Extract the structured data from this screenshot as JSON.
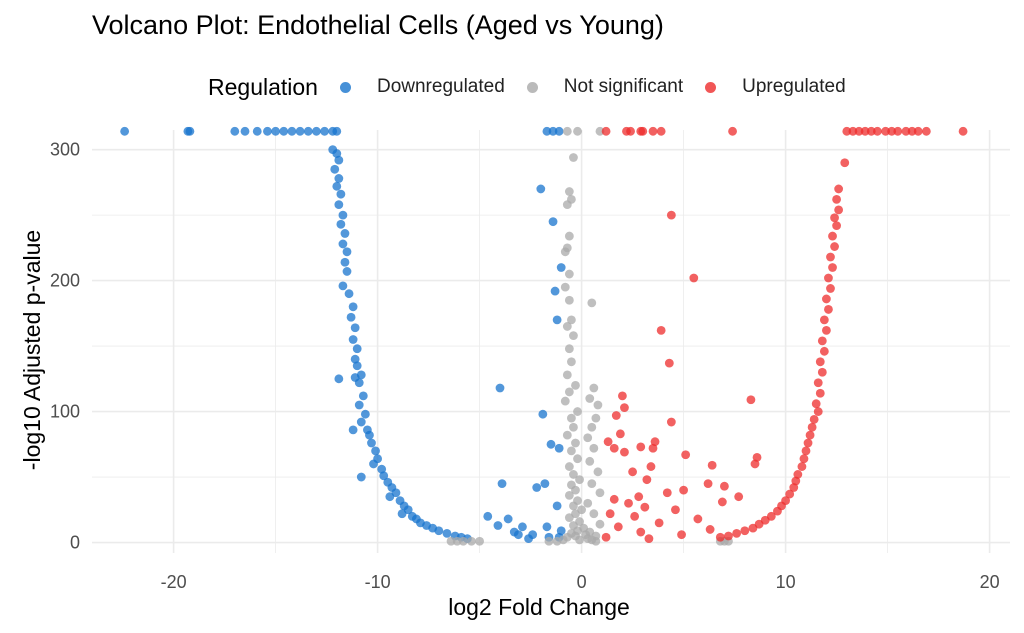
{
  "chart_data": {
    "type": "scatter",
    "title": "Volcano Plot: Endothelial Cells (Aged vs Young)",
    "xlabel": "log2 Fold Change",
    "ylabel": "-log10 Adjusted p-value",
    "xlim": [
      -24,
      21
    ],
    "ylim": [
      -8,
      315
    ],
    "x_ticks": [
      -20,
      -10,
      0,
      10,
      20
    ],
    "y_ticks": [
      0,
      100,
      200,
      300
    ],
    "grid": true,
    "legend": {
      "title": "Regulation",
      "position": "top"
    },
    "series": [
      {
        "name": "Downregulated",
        "color": "#1874cd",
        "points": [
          [
            -22.4,
            314
          ],
          [
            -19.3,
            314
          ],
          [
            -19.2,
            314
          ],
          [
            -17.0,
            314
          ],
          [
            -16.5,
            314
          ],
          [
            -15.9,
            314
          ],
          [
            -15.4,
            314
          ],
          [
            -15.0,
            314
          ],
          [
            -14.6,
            314
          ],
          [
            -14.2,
            314
          ],
          [
            -13.8,
            314
          ],
          [
            -13.4,
            314
          ],
          [
            -13.0,
            314
          ],
          [
            -12.6,
            314
          ],
          [
            -12.2,
            314
          ],
          [
            -12.0,
            314
          ],
          [
            -12.2,
            300
          ],
          [
            -12.0,
            297
          ],
          [
            -11.9,
            292
          ],
          [
            -12.1,
            285
          ],
          [
            -11.9,
            278
          ],
          [
            -12.0,
            272
          ],
          [
            -11.8,
            266
          ],
          [
            -11.9,
            258
          ],
          [
            -11.7,
            250
          ],
          [
            -11.8,
            243
          ],
          [
            -11.6,
            236
          ],
          [
            -11.7,
            228
          ],
          [
            -11.5,
            222
          ],
          [
            -11.6,
            214
          ],
          [
            -11.5,
            207
          ],
          [
            -11.7,
            196
          ],
          [
            -11.4,
            190
          ],
          [
            -11.2,
            180
          ],
          [
            -11.3,
            172
          ],
          [
            -11.1,
            164
          ],
          [
            -11.2,
            155
          ],
          [
            -11.0,
            148
          ],
          [
            -11.1,
            140
          ],
          [
            -11.0,
            135
          ],
          [
            -10.8,
            128
          ],
          [
            -11.1,
            126
          ],
          [
            -10.9,
            122
          ],
          [
            -11.9,
            125
          ],
          [
            -10.7,
            112
          ],
          [
            -10.9,
            105
          ],
          [
            -10.6,
            98
          ],
          [
            -10.8,
            92
          ],
          [
            -10.5,
            86
          ],
          [
            -10.4,
            82
          ],
          [
            -11.2,
            86
          ],
          [
            -10.3,
            76
          ],
          [
            -10.1,
            70
          ],
          [
            -10.0,
            64
          ],
          [
            -10.2,
            60
          ],
          [
            -9.8,
            56
          ],
          [
            -9.7,
            51
          ],
          [
            -10.8,
            50
          ],
          [
            -9.5,
            46
          ],
          [
            -9.3,
            42
          ],
          [
            -9.1,
            38
          ],
          [
            -9.4,
            35
          ],
          [
            -8.9,
            32
          ],
          [
            -8.7,
            28
          ],
          [
            -8.5,
            25
          ],
          [
            -8.8,
            22
          ],
          [
            -8.3,
            20
          ],
          [
            -8.1,
            18
          ],
          [
            -7.9,
            15
          ],
          [
            -7.6,
            13
          ],
          [
            -7.3,
            11
          ],
          [
            -7.0,
            9
          ],
          [
            -6.6,
            7
          ],
          [
            -6.2,
            5
          ],
          [
            -5.9,
            4
          ],
          [
            -5.6,
            3
          ],
          [
            -4.6,
            20
          ],
          [
            -4.1,
            13
          ],
          [
            -4.0,
            118
          ],
          [
            -3.9,
            45
          ],
          [
            -3.6,
            18
          ],
          [
            -3.3,
            8
          ],
          [
            -3.1,
            6
          ],
          [
            -2.9,
            12
          ],
          [
            -2.6,
            3
          ],
          [
            -2.4,
            6
          ],
          [
            -2.2,
            42
          ],
          [
            -2.0,
            270
          ],
          [
            -1.9,
            98
          ],
          [
            -1.8,
            45
          ],
          [
            -1.7,
            12
          ],
          [
            -1.6,
            4
          ],
          [
            -1.5,
            75
          ],
          [
            -1.4,
            245
          ],
          [
            -1.3,
            192
          ],
          [
            -1.2,
            170
          ],
          [
            -1.1,
            4
          ],
          [
            -1.0,
            210
          ],
          [
            -1.2,
            28
          ],
          [
            -1.1,
            72
          ],
          [
            -1.0,
            9
          ],
          [
            -1.7,
            314
          ],
          [
            -1.4,
            314
          ],
          [
            -1.1,
            314
          ]
        ]
      },
      {
        "name": "Not significant",
        "color": "#a9a9a9",
        "points": [
          [
            -0.7,
            314
          ],
          [
            -0.2,
            314
          ],
          [
            0.9,
            314
          ],
          [
            -0.4,
            294
          ],
          [
            -0.6,
            268
          ],
          [
            -0.5,
            262
          ],
          [
            -0.7,
            258
          ],
          [
            -0.6,
            234
          ],
          [
            -0.7,
            225
          ],
          [
            -0.8,
            222
          ],
          [
            -0.6,
            205
          ],
          [
            -0.8,
            195
          ],
          [
            -0.6,
            185
          ],
          [
            -0.5,
            170
          ],
          [
            -0.7,
            165
          ],
          [
            -0.4,
            158
          ],
          [
            -0.6,
            148
          ],
          [
            -0.5,
            138
          ],
          [
            -0.7,
            128
          ],
          [
            -0.3,
            120
          ],
          [
            -0.6,
            115
          ],
          [
            -0.8,
            108
          ],
          [
            -0.2,
            100
          ],
          [
            -0.5,
            95
          ],
          [
            -0.4,
            88
          ],
          [
            -0.7,
            82
          ],
          [
            -0.3,
            76
          ],
          [
            -0.5,
            70
          ],
          [
            -0.2,
            64
          ],
          [
            -0.6,
            58
          ],
          [
            -0.4,
            52
          ],
          [
            -0.1,
            48
          ],
          [
            -0.5,
            44
          ],
          [
            -0.3,
            40
          ],
          [
            -0.6,
            36
          ],
          [
            -0.2,
            32
          ],
          [
            -0.4,
            28
          ],
          [
            0.0,
            25
          ],
          [
            -0.3,
            22
          ],
          [
            -0.6,
            19
          ],
          [
            -0.1,
            16
          ],
          [
            -0.4,
            13
          ],
          [
            0.1,
            11
          ],
          [
            -0.2,
            9
          ],
          [
            -0.5,
            7
          ],
          [
            0.2,
            6
          ],
          [
            -0.3,
            5
          ],
          [
            -0.7,
            4
          ],
          [
            0.3,
            3
          ],
          [
            -0.1,
            2
          ],
          [
            -0.9,
            2
          ],
          [
            0.5,
            2
          ],
          [
            -1.2,
            1
          ],
          [
            0.7,
            1
          ],
          [
            -1.6,
            1
          ],
          [
            0.4,
            110
          ],
          [
            0.6,
            118
          ],
          [
            0.8,
            105
          ],
          [
            0.7,
            95
          ],
          [
            0.5,
            88
          ],
          [
            0.3,
            80
          ],
          [
            0.6,
            72
          ],
          [
            0.4,
            62
          ],
          [
            0.8,
            54
          ],
          [
            0.5,
            45
          ],
          [
            0.9,
            38
          ],
          [
            0.3,
            30
          ],
          [
            0.6,
            22
          ],
          [
            0.9,
            14
          ],
          [
            0.4,
            8
          ],
          [
            0.7,
            5
          ],
          [
            0.5,
            183
          ],
          [
            -6.4,
            1
          ],
          [
            -6.1,
            1
          ],
          [
            -5.8,
            1
          ],
          [
            -5.4,
            1
          ],
          [
            -5.0,
            1
          ],
          [
            6.8,
            1
          ],
          [
            7.0,
            1
          ],
          [
            7.2,
            1
          ]
        ]
      },
      {
        "name": "Upregulated",
        "color": "#ee2c2c",
        "points": [
          [
            1.2,
            314
          ],
          [
            2.2,
            314
          ],
          [
            2.4,
            314
          ],
          [
            2.9,
            314
          ],
          [
            3.0,
            314
          ],
          [
            3.5,
            314
          ],
          [
            3.9,
            314
          ],
          [
            7.4,
            314
          ],
          [
            13.0,
            314
          ],
          [
            13.3,
            314
          ],
          [
            13.6,
            314
          ],
          [
            13.9,
            314
          ],
          [
            14.2,
            314
          ],
          [
            14.5,
            314
          ],
          [
            14.9,
            314
          ],
          [
            15.2,
            314
          ],
          [
            15.5,
            314
          ],
          [
            15.9,
            314
          ],
          [
            16.2,
            314
          ],
          [
            16.5,
            314
          ],
          [
            16.9,
            314
          ],
          [
            18.7,
            314
          ],
          [
            12.9,
            290
          ],
          [
            12.6,
            270
          ],
          [
            12.5,
            262
          ],
          [
            12.6,
            254
          ],
          [
            12.4,
            248
          ],
          [
            12.5,
            242
          ],
          [
            12.3,
            234
          ],
          [
            12.4,
            226
          ],
          [
            12.2,
            218
          ],
          [
            12.3,
            210
          ],
          [
            12.1,
            202
          ],
          [
            12.2,
            194
          ],
          [
            12.0,
            186
          ],
          [
            12.1,
            178
          ],
          [
            11.9,
            170
          ],
          [
            12.0,
            162
          ],
          [
            11.8,
            154
          ],
          [
            11.9,
            146
          ],
          [
            11.7,
            138
          ],
          [
            11.8,
            130
          ],
          [
            11.6,
            122
          ],
          [
            11.7,
            114
          ],
          [
            11.5,
            106
          ],
          [
            11.6,
            100
          ],
          [
            11.4,
            94
          ],
          [
            11.3,
            88
          ],
          [
            11.2,
            82
          ],
          [
            11.1,
            76
          ],
          [
            11.0,
            70
          ],
          [
            10.9,
            64
          ],
          [
            10.8,
            58
          ],
          [
            10.6,
            52
          ],
          [
            10.5,
            47
          ],
          [
            10.4,
            42
          ],
          [
            10.2,
            37
          ],
          [
            10.0,
            32
          ],
          [
            9.8,
            28
          ],
          [
            9.6,
            24
          ],
          [
            9.3,
            20
          ],
          [
            9.0,
            17
          ],
          [
            8.7,
            14
          ],
          [
            8.4,
            11
          ],
          [
            8.0,
            9
          ],
          [
            7.6,
            7
          ],
          [
            7.2,
            5
          ],
          [
            6.8,
            4
          ],
          [
            4.4,
            250
          ],
          [
            5.5,
            202
          ],
          [
            3.9,
            162
          ],
          [
            4.3,
            137
          ],
          [
            8.3,
            109
          ],
          [
            2.0,
            112
          ],
          [
            2.1,
            103
          ],
          [
            1.7,
            97
          ],
          [
            4.4,
            92
          ],
          [
            1.9,
            83
          ],
          [
            3.6,
            77
          ],
          [
            3.5,
            72
          ],
          [
            1.3,
            77
          ],
          [
            2.1,
            69
          ],
          [
            5.1,
            67
          ],
          [
            1.6,
            72
          ],
          [
            2.9,
            73
          ],
          [
            8.6,
            65
          ],
          [
            8.5,
            60
          ],
          [
            3.4,
            58
          ],
          [
            6.4,
            59
          ],
          [
            2.5,
            54
          ],
          [
            3.2,
            48
          ],
          [
            6.2,
            45
          ],
          [
            7.0,
            43
          ],
          [
            5.0,
            40
          ],
          [
            4.2,
            38
          ],
          [
            2.8,
            35
          ],
          [
            1.6,
            33
          ],
          [
            2.3,
            30
          ],
          [
            6.9,
            31
          ],
          [
            7.7,
            35
          ],
          [
            3.1,
            27
          ],
          [
            4.6,
            25
          ],
          [
            1.4,
            22
          ],
          [
            2.6,
            20
          ],
          [
            5.7,
            18
          ],
          [
            3.8,
            15
          ],
          [
            1.8,
            12
          ],
          [
            6.3,
            10
          ],
          [
            2.9,
            8
          ],
          [
            4.9,
            6
          ],
          [
            1.2,
            4
          ],
          [
            3.3,
            3
          ]
        ]
      }
    ]
  }
}
